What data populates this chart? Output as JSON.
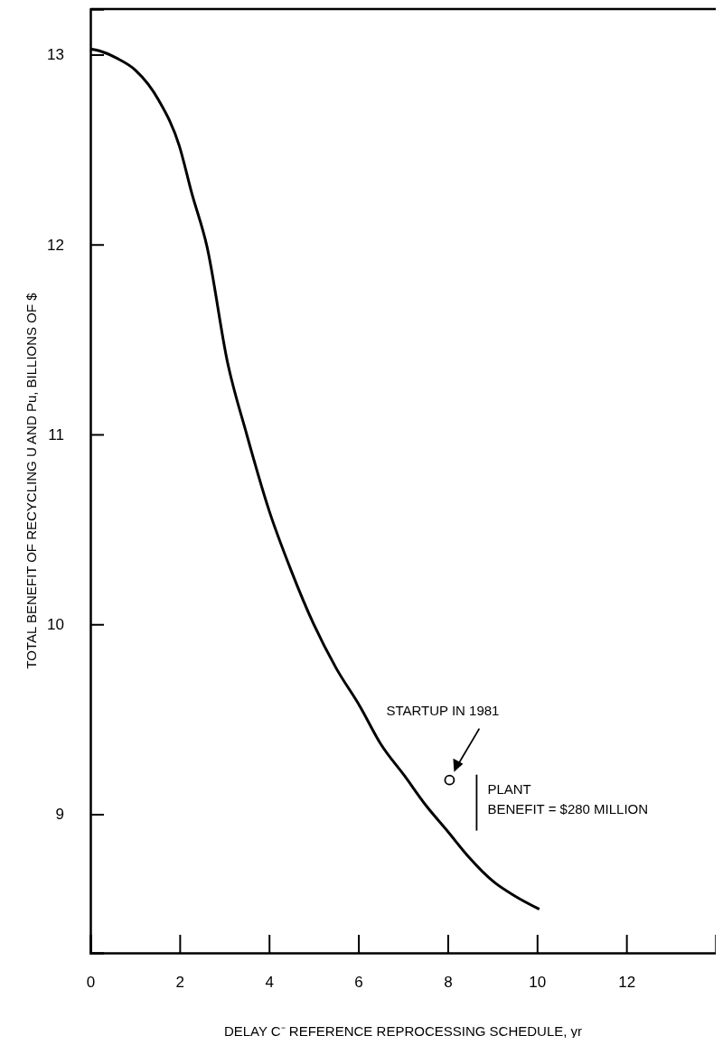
{
  "chart_data": {
    "type": "line",
    "xlabel": "DELAY C⁻ REFERENCE REPROCESSING SCHEDULE, yr",
    "ylabel": "TOTAL BENEFIT OF RECYCLING U AND Pu, BILLIONS OF $",
    "xlim": [
      0,
      14
    ],
    "xticks": [
      0,
      2,
      4,
      6,
      8,
      10,
      12
    ],
    "ylim": [
      8.27,
      13.24
    ],
    "yticks": [
      9,
      10,
      11,
      12,
      13
    ],
    "grid": false,
    "series": [
      {
        "color": "#000000",
        "marker": "none",
        "line_style": "solid",
        "x": [
          0,
          0.2,
          0.6,
          1.0,
          1.53,
          1.99,
          2.27,
          2.61,
          3.07,
          3.5,
          4,
          4.5,
          5,
          5.5,
          6.03,
          6.5,
          7.04,
          7.5,
          8,
          8.45,
          9.05,
          9.5,
          10.05
        ],
        "values": [
          13.03,
          13.02,
          12.98,
          12.92,
          12.76,
          12.52,
          12.27,
          11.99,
          11.38,
          11.0,
          10.6,
          10.28,
          10.0,
          9.77,
          9.57,
          9.37,
          9.2,
          9.05,
          8.91,
          8.78,
          8.64,
          8.57,
          8.5
        ]
      },
      {
        "type": "scatter",
        "color": "#000000",
        "marker": "circle",
        "x": [
          8.04
        ],
        "values": [
          9.18
        ]
      }
    ],
    "annotations": [
      "STARTUP IN 1981",
      "PLANT\nBENEFIT = $280 MILLION"
    ]
  }
}
